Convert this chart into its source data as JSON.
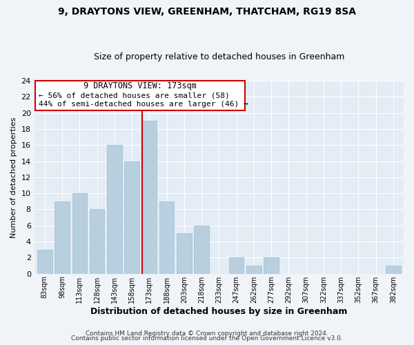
{
  "title1": "9, DRAYTONS VIEW, GREENHAM, THATCHAM, RG19 8SA",
  "title2": "Size of property relative to detached houses in Greenham",
  "xlabel": "Distribution of detached houses by size in Greenham",
  "ylabel": "Number of detached properties",
  "categories": [
    "83sqm",
    "98sqm",
    "113sqm",
    "128sqm",
    "143sqm",
    "158sqm",
    "173sqm",
    "188sqm",
    "203sqm",
    "218sqm",
    "233sqm",
    "247sqm",
    "262sqm",
    "277sqm",
    "292sqm",
    "307sqm",
    "322sqm",
    "337sqm",
    "352sqm",
    "367sqm",
    "382sqm"
  ],
  "values": [
    3,
    9,
    10,
    8,
    16,
    14,
    19,
    9,
    5,
    6,
    0,
    2,
    1,
    2,
    0,
    0,
    0,
    0,
    0,
    0,
    1
  ],
  "highlight_index": 6,
  "bar_color": "#b8cfe0",
  "highlight_line_color": "#cc0000",
  "annotation_title": "9 DRAYTONS VIEW: 173sqm",
  "annotation_line1": "← 56% of detached houses are smaller (58)",
  "annotation_line2": "44% of semi-detached houses are larger (46) →",
  "ylim": [
    0,
    24
  ],
  "yticks": [
    0,
    2,
    4,
    6,
    8,
    10,
    12,
    14,
    16,
    18,
    20,
    22,
    24
  ],
  "footer1": "Contains HM Land Registry data © Crown copyright and database right 2024.",
  "footer2": "Contains public sector information licensed under the Open Government Licence v3.0.",
  "background_color": "#f0f4f8",
  "plot_background": "#e4edf5"
}
